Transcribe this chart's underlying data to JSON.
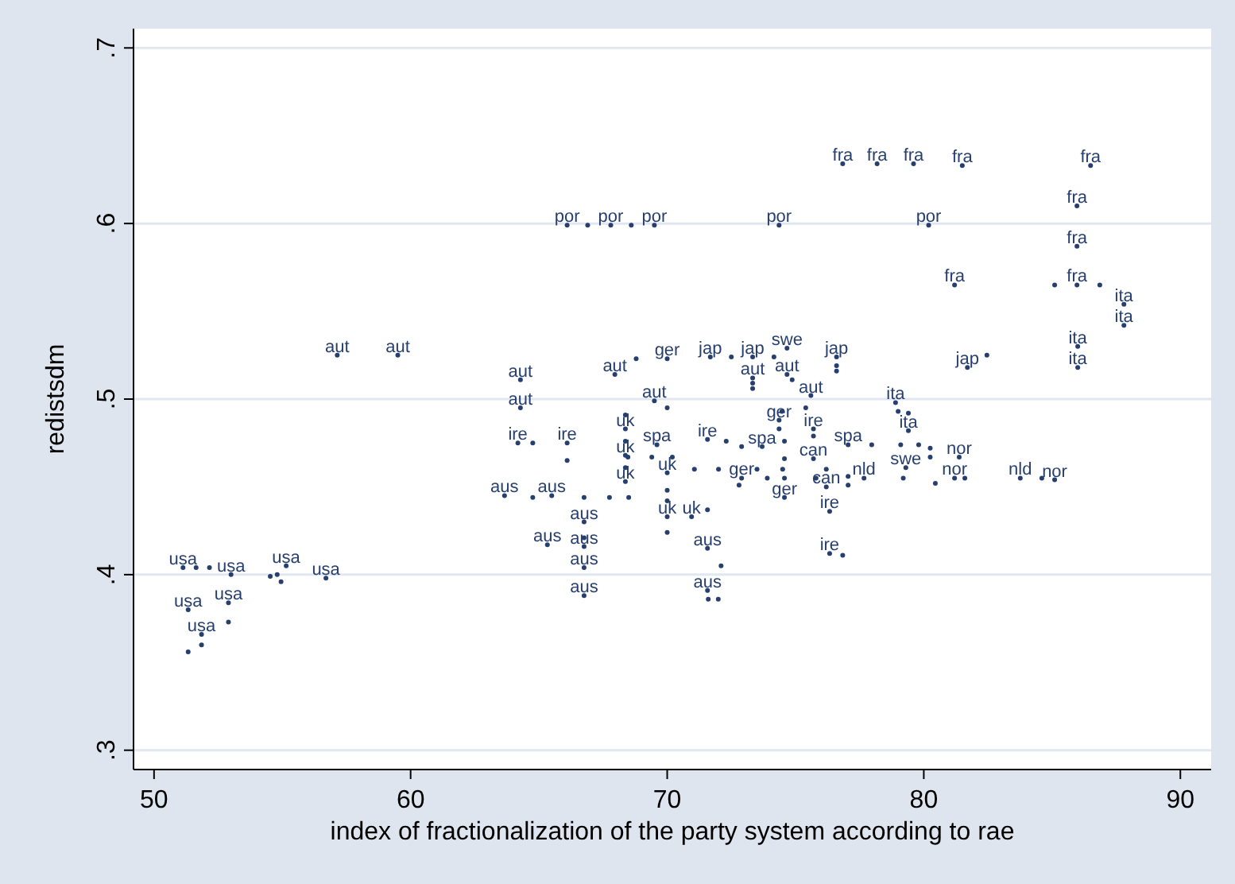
{
  "chart_data": {
    "type": "scatter",
    "xlabel": "index of fractionalization of the party system according to rae",
    "ylabel": "redistsdm",
    "xlim": [
      49.2,
      91.2
    ],
    "ylim": [
      0.289,
      0.711
    ],
    "xticks": [
      50,
      60,
      70,
      80,
      90
    ],
    "yticks": [
      {
        "value": 0.3,
        "label": ".3"
      },
      {
        "value": 0.4,
        "label": ".4"
      },
      {
        "value": 0.5,
        "label": ".5"
      },
      {
        "value": 0.6,
        "label": ".6"
      },
      {
        "value": 0.7,
        "label": ".7"
      }
    ],
    "grid": "y",
    "marker": "circle",
    "series": [
      {
        "name": "usa",
        "color": "#263f6e",
        "x": [
          51.13,
          51.64,
          52.16,
          53.0,
          55.15,
          54.53,
          54.95,
          54.8,
          56.7,
          51.33,
          52.9,
          52.9,
          51.85,
          51.85,
          51.33
        ],
        "values": [
          0.404,
          0.404,
          0.404,
          0.4,
          0.405,
          0.399,
          0.396,
          0.4,
          0.398,
          0.38,
          0.384,
          0.373,
          0.366,
          0.36,
          0.356
        ]
      },
      {
        "name": "aut",
        "color": "#263f6e",
        "x": [
          57.14,
          59.5,
          64.28,
          64.28,
          67.96,
          69.5,
          73.33,
          73.33,
          73.33,
          74.67,
          75.6
        ],
        "values": [
          0.525,
          0.525,
          0.511,
          0.495,
          0.514,
          0.499,
          0.512,
          0.506,
          0.509,
          0.514,
          0.502
        ]
      },
      {
        "name": "fra",
        "color": "#263f6e",
        "x": [
          76.84,
          78.18,
          79.6,
          81.5,
          86.5,
          85.97,
          85.97,
          81.2,
          85.97
        ],
        "values": [
          0.634,
          0.634,
          0.634,
          0.633,
          0.633,
          0.61,
          0.587,
          0.565,
          0.565
        ]
      },
      {
        "name": "por",
        "color": "#263f6e",
        "x": [
          66.1,
          66.9,
          67.8,
          68.6,
          69.5,
          74.36,
          80.19
        ],
        "values": [
          0.599,
          0.599,
          0.599,
          0.599,
          0.599,
          0.599,
          0.599
        ]
      },
      {
        "name": "ita",
        "color": "#263f6e",
        "x": [
          85.1,
          86.86,
          87.8,
          87.8,
          86.0,
          86.0,
          75.4,
          78.9,
          79.0,
          79.4,
          79.4,
          79.8
        ],
        "values": [
          0.565,
          0.565,
          0.554,
          0.542,
          0.53,
          0.518,
          0.495,
          0.498,
          0.493,
          0.492,
          0.482,
          0.474
        ]
      },
      {
        "name": "jap",
        "color": "#263f6e",
        "x": [
          71.68,
          72.5,
          73.33,
          74.16,
          76.6,
          76.6,
          76.6,
          81.7,
          82.46
        ],
        "values": [
          0.524,
          0.524,
          0.524,
          0.524,
          0.524,
          0.519,
          0.516,
          0.518,
          0.525
        ]
      },
      {
        "name": "ire",
        "color": "#263f6e",
        "x": [
          64.18,
          64.76,
          66.1,
          71.57,
          72.3,
          75.7,
          75.7,
          76.33,
          76.33,
          76.84
        ],
        "values": [
          0.475,
          0.475,
          0.475,
          0.477,
          0.476,
          0.483,
          0.479,
          0.436,
          0.412,
          0.411
        ]
      },
      {
        "name": "uk",
        "color": "#263f6e",
        "x": [
          66.1,
          68.37,
          68.37,
          68.37,
          68.37,
          68.37,
          68.37,
          68.47,
          70.0,
          70.0,
          70.0,
          70.95
        ],
        "values": [
          0.465,
          0.491,
          0.483,
          0.476,
          0.468,
          0.461,
          0.453,
          0.467,
          0.458,
          0.448,
          0.433,
          0.433
        ]
      },
      {
        "name": "aus",
        "color": "#263f6e",
        "x": [
          63.66,
          65.5,
          66.76,
          66.76,
          65.33,
          66.76,
          66.76,
          66.76,
          70.0,
          70.0,
          71.57,
          71.57,
          72.1,
          71.57,
          71.99,
          71.6
        ],
        "values": [
          0.445,
          0.445,
          0.43,
          0.421,
          0.417,
          0.416,
          0.404,
          0.388,
          0.442,
          0.424,
          0.437,
          0.415,
          0.405,
          0.391,
          0.386,
          0.386
        ]
      },
      {
        "name": "can",
        "color": "#263f6e",
        "x": [
          64.76,
          66.76,
          67.75,
          68.5,
          75.7,
          74.5,
          75.8,
          76.2,
          76.2,
          77.05,
          77.05
        ],
        "values": [
          0.444,
          0.444,
          0.444,
          0.444,
          0.466,
          0.46,
          0.455,
          0.46,
          0.45,
          0.456,
          0.451
        ]
      },
      {
        "name": "ger",
        "color": "#263f6e",
        "x": [
          68.79,
          70.0,
          70.0,
          74.36,
          74.36,
          74.57,
          74.57,
          74.57,
          72.9,
          72.8
        ],
        "values": [
          0.523,
          0.523,
          0.495,
          0.488,
          0.483,
          0.476,
          0.466,
          0.444,
          0.455,
          0.451
        ]
      },
      {
        "name": "spa",
        "color": "#263f6e",
        "x": [
          69.4,
          69.6,
          70.2,
          72.9,
          73.7,
          77.05,
          77.97
        ],
        "values": [
          0.467,
          0.474,
          0.467,
          0.473,
          0.473,
          0.474,
          0.474
        ]
      },
      {
        "name": "swe",
        "color": "#263f6e",
        "x": [
          71.06,
          72.0,
          73.5,
          74.67,
          74.87,
          74.47,
          79.1,
          79.3
        ],
        "values": [
          0.46,
          0.46,
          0.46,
          0.529,
          0.511,
          0.493,
          0.474,
          0.461
        ]
      },
      {
        "name": "nor",
        "color": "#263f6e",
        "x": [
          74.57,
          80.25,
          80.25,
          81.38,
          80.45,
          81.2,
          85.1
        ],
        "values": [
          0.455,
          0.472,
          0.467,
          0.467,
          0.452,
          0.455,
          0.454
        ]
      },
      {
        "name": "nld",
        "color": "#263f6e",
        "x": [
          79.2,
          81.6,
          83.76,
          84.6,
          77.67,
          73.9
        ],
        "values": [
          0.455,
          0.455,
          0.455,
          0.455,
          0.455,
          0.455
        ]
      }
    ]
  }
}
